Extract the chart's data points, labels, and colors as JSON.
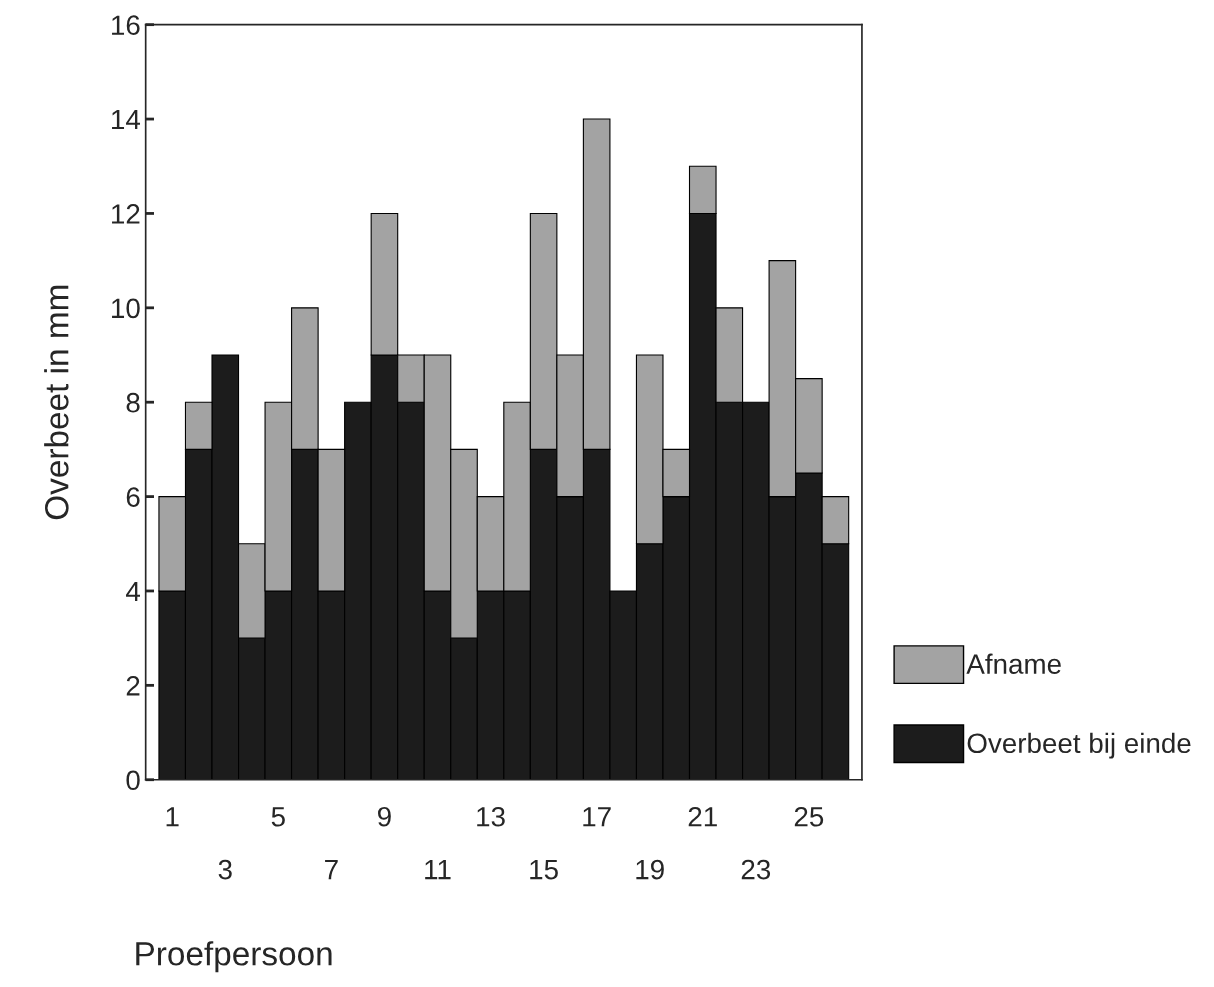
{
  "chart_data": {
    "type": "bar",
    "stacked": true,
    "xlabel": "Proefpersoon",
    "ylabel": "Overbeet in mm",
    "categories": [
      "1",
      null,
      "3",
      null,
      "5",
      null,
      "7",
      null,
      "9",
      null,
      "11",
      null,
      "13",
      null,
      "15",
      null,
      "17",
      null,
      "19",
      null,
      "21",
      null,
      "23",
      null,
      "25",
      null
    ],
    "series": [
      {
        "name": "Overbeet bij einde",
        "color": "#1c1c1c",
        "values": [
          4,
          7,
          9,
          3,
          4,
          7,
          4,
          8,
          9,
          8,
          4,
          3,
          4,
          4,
          7,
          6,
          7,
          4,
          5,
          6,
          12,
          8,
          8,
          6,
          6.5,
          5
        ]
      },
      {
        "name": "Afname",
        "color": "#a3a3a3",
        "values": [
          2,
          1,
          0,
          2,
          4,
          3,
          3,
          0,
          3,
          1,
          5,
          4,
          2,
          4,
          5,
          3,
          7,
          0,
          4,
          1,
          1,
          2,
          0,
          5,
          2,
          1
        ]
      }
    ],
    "ylim": [
      0,
      16
    ],
    "yticks": [
      0,
      2,
      4,
      6,
      8,
      10,
      12,
      14,
      16
    ],
    "grid": false,
    "legend": "right"
  }
}
